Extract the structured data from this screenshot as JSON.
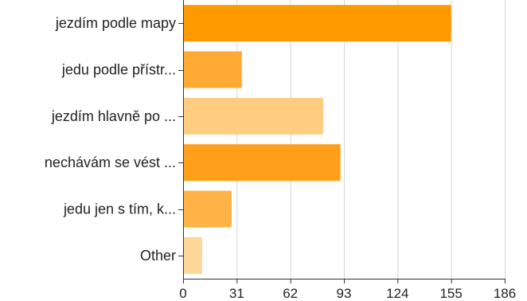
{
  "chart_data": {
    "type": "bar",
    "orientation": "horizontal",
    "categories": [
      "jezdím podle mapy",
      "jedu podle přístr...",
      "jezdím hlavně po ...",
      "nechávám se vést ...",
      "jedu jen s tím, k...",
      "Other"
    ],
    "values": [
      155,
      34,
      81,
      91,
      28,
      11
    ],
    "bar_colors": [
      "#ff9900",
      "#ffaa33",
      "#ffcc80",
      "#ff9f1a",
      "#ffb347",
      "#ffd699"
    ],
    "xlim": [
      0,
      186
    ],
    "xticks": [
      "0",
      "31",
      "62",
      "93",
      "124",
      "155",
      "186"
    ],
    "title": "",
    "xlabel": "",
    "ylabel": "",
    "grid": true,
    "legend": "none"
  }
}
